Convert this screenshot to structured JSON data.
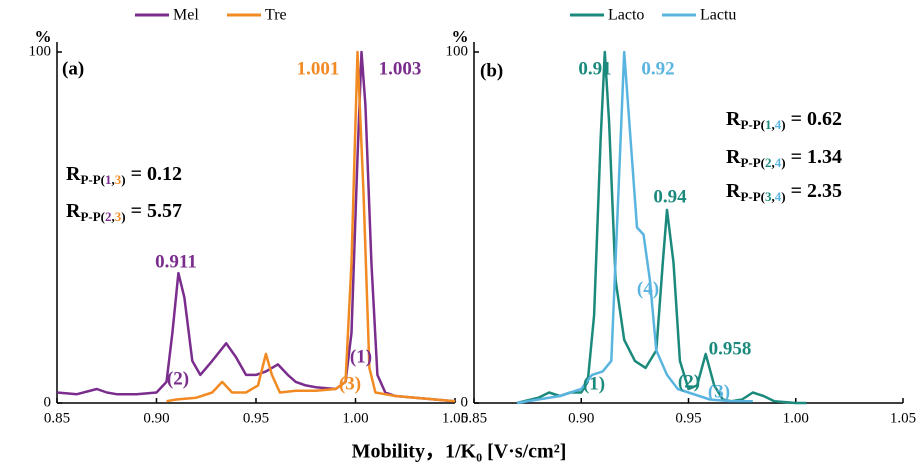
{
  "xlabel": "Mobility，1/K₀ [V·s/cm²]",
  "chart_data": [
    {
      "type": "line",
      "panel_label": "(a)",
      "ylabel": "%",
      "xlim": [
        0.85,
        1.05
      ],
      "xticks": [
        0.85,
        {
          "value": 0.9,
          "label": "0.90"
        },
        0.95,
        {
          "value": 1.0,
          "label": "1.00"
        },
        1.05
      ],
      "ylim": [
        0,
        100
      ],
      "yticks": [
        0,
        100
      ],
      "series": [
        {
          "name": "Mel",
          "color": "#7b2d8e",
          "x": [
            0.85,
            0.86,
            0.87,
            0.875,
            0.88,
            0.89,
            0.9,
            0.905,
            0.908,
            0.911,
            0.914,
            0.918,
            0.922,
            0.928,
            0.935,
            0.94,
            0.945,
            0.95,
            0.955,
            0.961,
            0.966,
            0.97,
            0.975,
            0.98,
            0.99,
            0.995,
            0.998,
            1.001,
            1.003,
            1.005,
            1.008,
            1.011,
            1.015,
            1.02,
            1.03,
            1.04,
            1.05
          ],
          "values": [
            3,
            2.5,
            4,
            3,
            2.5,
            2.5,
            3,
            6,
            20,
            37,
            30,
            12,
            8,
            12,
            17,
            13,
            8,
            8,
            9,
            11,
            8,
            6,
            5,
            4.5,
            4,
            6,
            20,
            70,
            100,
            85,
            40,
            8,
            3,
            2,
            1.5,
            1,
            0.5
          ]
        },
        {
          "name": "Tre",
          "color": "#f28a24",
          "x": [
            0.905,
            0.91,
            0.92,
            0.928,
            0.933,
            0.938,
            0.945,
            0.951,
            0.955,
            0.958,
            0.962,
            0.97,
            0.98,
            0.99,
            0.995,
            0.998,
            1.001,
            1.004,
            1.007,
            1.01,
            1.02,
            1.03,
            1.04,
            1.05
          ],
          "values": [
            0.5,
            1,
            1.5,
            3,
            6,
            3,
            3,
            5,
            14,
            8,
            3,
            3.5,
            3.5,
            4,
            6,
            40,
            100,
            60,
            10,
            3,
            2,
            1.5,
            1,
            0.5
          ]
        }
      ],
      "annotations": [
        {
          "text": "0.911",
          "color": "#7b2d8e"
        },
        {
          "text": "1.001",
          "color": "#f28a24"
        },
        {
          "text": "1.003",
          "color": "#7b2d8e"
        },
        {
          "text": "(1)",
          "color": "#7b2d8e"
        },
        {
          "text": "(2)",
          "color": "#7b2d8e"
        },
        {
          "text": "(3)",
          "color": "#f28a24"
        }
      ],
      "formulas": [
        [
          {
            "text": "R"
          },
          {
            "text": "P-P(",
            "sub": true
          },
          {
            "text": "1",
            "sub": true,
            "color": "#7b2d8e"
          },
          {
            "text": ",",
            "sub": true
          },
          {
            "text": "3",
            "sub": true,
            "color": "#f28a24"
          },
          {
            "text": ")",
            "sub": true
          },
          {
            "text": " = 0.12"
          }
        ],
        [
          {
            "text": "R"
          },
          {
            "text": "P-P(",
            "sub": true
          },
          {
            "text": "2",
            "sub": true,
            "color": "#7b2d8e"
          },
          {
            "text": ",",
            "sub": true
          },
          {
            "text": "3",
            "sub": true,
            "color": "#f28a24"
          },
          {
            "text": ")",
            "sub": true
          },
          {
            "text": " = 5.57"
          }
        ]
      ]
    },
    {
      "type": "line",
      "panel_label": "(b)",
      "ylabel": "%",
      "xlim": [
        0.85,
        1.05
      ],
      "xticks": [
        0.85,
        {
          "value": 0.9,
          "label": "0.90"
        },
        0.95,
        {
          "value": 1.0,
          "label": "1.00"
        },
        1.05
      ],
      "ylim": [
        0,
        100
      ],
      "yticks": [
        0,
        100
      ],
      "series": [
        {
          "name": "Lacto",
          "color": "#1b8a7c",
          "x": [
            0.87,
            0.88,
            0.885,
            0.89,
            0.895,
            0.9,
            0.903,
            0.906,
            0.909,
            0.911,
            0.913,
            0.916,
            0.92,
            0.925,
            0.93,
            0.935,
            0.938,
            0.94,
            0.943,
            0.946,
            0.95,
            0.954,
            0.958,
            0.962,
            0.966,
            0.97,
            0.975,
            0.98,
            0.985,
            0.99,
            1.0,
            1.005
          ],
          "values": [
            0,
            1.5,
            3,
            2,
            3,
            3,
            6,
            25,
            75,
            100,
            80,
            35,
            18,
            12,
            10,
            15,
            40,
            55,
            40,
            12,
            4,
            5,
            14,
            5,
            1,
            0.5,
            1,
            3,
            2,
            0.5,
            0,
            0
          ]
        },
        {
          "name": "Lactu",
          "color": "#5ab4e0",
          "x": [
            0.87,
            0.88,
            0.89,
            0.895,
            0.9,
            0.905,
            0.91,
            0.914,
            0.917,
            0.92,
            0.923,
            0.926,
            0.929,
            0.932,
            0.935,
            0.94,
            0.945,
            0.95,
            0.955,
            0.96,
            0.97,
            0.98
          ],
          "values": [
            0,
            1,
            2,
            3,
            4,
            8,
            9,
            12,
            55,
            100,
            75,
            50,
            48,
            35,
            15,
            8,
            4,
            3,
            2,
            1,
            0.5,
            0.5
          ]
        }
      ],
      "annotations": [
        {
          "text": "0.91",
          "color": "#1b8a7c"
        },
        {
          "text": "0.92",
          "color": "#5ab4e0"
        },
        {
          "text": "0.94",
          "color": "#1b8a7c"
        },
        {
          "text": "0.958",
          "color": "#1b8a7c"
        },
        {
          "text": "(4)",
          "color": "#5ab4e0"
        },
        {
          "text": "(1)",
          "color": "#1b8a7c"
        },
        {
          "text": "(2)",
          "color": "#1b8a7c"
        },
        {
          "text": "(3)",
          "color": "#5ab4e0"
        }
      ],
      "formulas": [
        [
          {
            "text": "R"
          },
          {
            "text": "P-P(",
            "sub": true
          },
          {
            "text": "1",
            "sub": true,
            "color": "#1b8a7c"
          },
          {
            "text": ",",
            "sub": true
          },
          {
            "text": "4",
            "sub": true,
            "color": "#5ab4e0"
          },
          {
            "text": ")",
            "sub": true
          },
          {
            "text": " = 0.62"
          }
        ],
        [
          {
            "text": "R"
          },
          {
            "text": "P-P(",
            "sub": true
          },
          {
            "text": "2",
            "sub": true,
            "color": "#1b8a7c"
          },
          {
            "text": ",",
            "sub": true
          },
          {
            "text": "4",
            "sub": true,
            "color": "#5ab4e0"
          },
          {
            "text": ")",
            "sub": true
          },
          {
            "text": " = 1.34"
          }
        ],
        [
          {
            "text": "R"
          },
          {
            "text": "P-P(",
            "sub": true
          },
          {
            "text": "3",
            "sub": true,
            "color": "#1b8a7c"
          },
          {
            "text": ",",
            "sub": true
          },
          {
            "text": "4",
            "sub": true,
            "color": "#5ab4e0"
          },
          {
            "text": ")",
            "sub": true
          },
          {
            "text": " = 2.35"
          }
        ]
      ]
    }
  ]
}
